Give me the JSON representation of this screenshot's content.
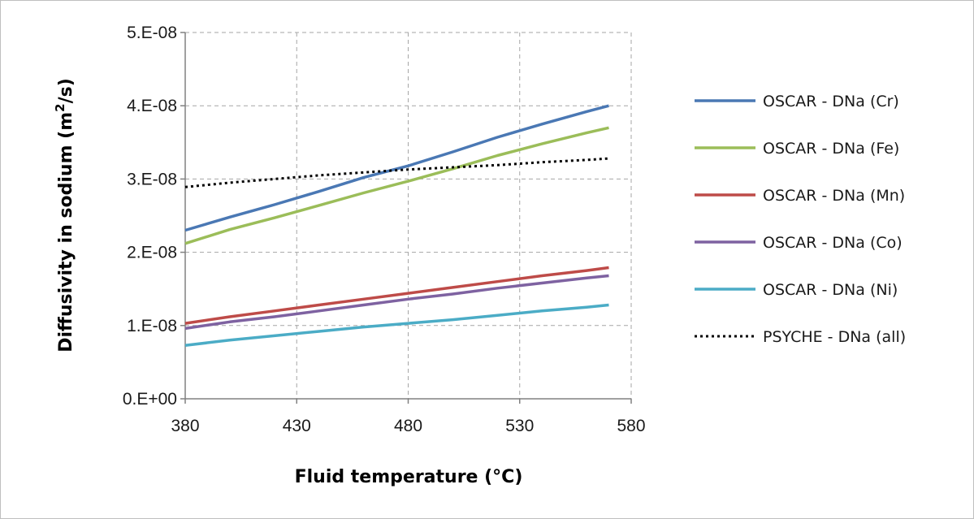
{
  "chart_data": {
    "type": "line",
    "xlabel": "Fluid temperature (°C)",
    "ylabel_prefix": "Diffusivity in sodium (m",
    "ylabel_sup": "2",
    "ylabel_suffix": "/s)",
    "xlim": [
      380,
      580
    ],
    "ylim": [
      0,
      5e-08
    ],
    "x_ticks": [
      380,
      430,
      480,
      530,
      580
    ],
    "x_tick_labels": [
      "380",
      "430",
      "480",
      "530",
      "580"
    ],
    "y_ticks": [
      0,
      1e-08,
      2e-08,
      3e-08,
      4e-08,
      5e-08
    ],
    "y_tick_labels": [
      "0.E+00",
      "1.E-08",
      "2.E-08",
      "3.E-08",
      "4.E-08",
      "5.E-08"
    ],
    "grid": true,
    "legend_position": "right",
    "x": [
      380,
      400,
      420,
      440,
      460,
      480,
      500,
      520,
      540,
      560,
      570
    ],
    "series": [
      {
        "name": "OSCAR - DNa (Cr)",
        "color": "#4a78b4",
        "style": "solid",
        "values": [
          2.3e-08,
          2.48e-08,
          2.65e-08,
          2.83e-08,
          3.02e-08,
          3.18e-08,
          3.37e-08,
          3.57e-08,
          3.75e-08,
          3.92e-08,
          4e-08
        ]
      },
      {
        "name": "OSCAR - DNa (Fe)",
        "color": "#9bbd59",
        "style": "solid",
        "values": [
          2.12e-08,
          2.31e-08,
          2.47e-08,
          2.64e-08,
          2.81e-08,
          2.97e-08,
          3.14e-08,
          3.32e-08,
          3.48e-08,
          3.63e-08,
          3.7e-08
        ]
      },
      {
        "name": "OSCAR - DNa (Mn)",
        "color": "#be4b48",
        "style": "solid",
        "values": [
          1.03e-08,
          1.12e-08,
          1.2e-08,
          1.28e-08,
          1.36e-08,
          1.44e-08,
          1.52e-08,
          1.6e-08,
          1.68e-08,
          1.75e-08,
          1.79e-08
        ]
      },
      {
        "name": "OSCAR - DNa (Co)",
        "color": "#7e62a1",
        "style": "solid",
        "values": [
          9.6e-09,
          1.05e-08,
          1.12e-08,
          1.2e-08,
          1.28e-08,
          1.36e-08,
          1.43e-08,
          1.51e-08,
          1.58e-08,
          1.65e-08,
          1.68e-08
        ]
      },
      {
        "name": "OSCAR - DNa (Ni)",
        "color": "#4bacc6",
        "style": "solid",
        "values": [
          7.3e-09,
          8e-09,
          8.6e-09,
          9.2e-09,
          9.8e-09,
          1.03e-08,
          1.08e-08,
          1.14e-08,
          1.2e-08,
          1.25e-08,
          1.28e-08
        ]
      },
      {
        "name": "PSYCHE - DNa (all)",
        "color": "#000000",
        "style": "dotted",
        "values": [
          2.89e-08,
          2.95e-08,
          3e-08,
          3.05e-08,
          3.09e-08,
          3.13e-08,
          3.16e-08,
          3.19e-08,
          3.23e-08,
          3.26e-08,
          3.28e-08
        ]
      }
    ]
  }
}
